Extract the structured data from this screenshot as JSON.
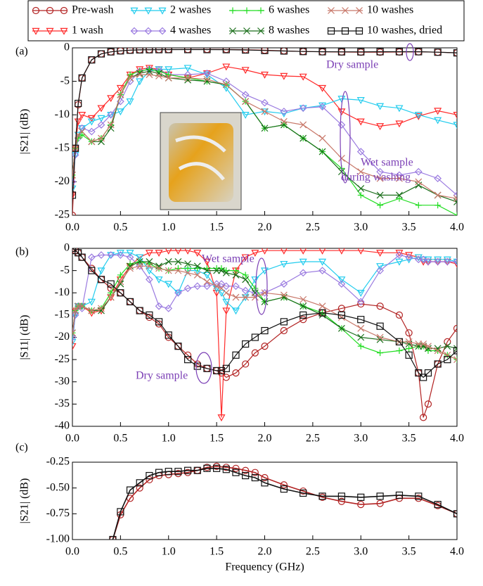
{
  "chart_data": [
    {
      "type": "line",
      "panel_label": "(a)",
      "y_label": "|S21| (dB)",
      "annotations": [
        "Dry sample",
        "Wet sample",
        "during washing"
      ],
      "x": [
        0,
        0.03,
        0.06,
        0.1,
        0.2,
        0.3,
        0.4,
        0.5,
        0.6,
        0.7,
        0.8,
        0.9,
        1.0,
        1.2,
        1.4,
        1.6,
        1.8,
        2.0,
        2.2,
        2.4,
        2.6,
        2.8,
        3.0,
        3.2,
        3.4,
        3.6,
        3.8,
        4.0
      ],
      "xlim": [
        0,
        4
      ],
      "ylim": [
        -25,
        0
      ],
      "xticks": [
        {
          "value": 0,
          "label": "0.0"
        },
        0.5,
        {
          "value": 1,
          "label": "1.0"
        },
        1.5,
        {
          "value": 2,
          "label": "2.0"
        },
        2.5,
        {
          "value": 3,
          "label": "3.0"
        },
        3.5,
        {
          "value": 4,
          "label": "4.0"
        }
      ],
      "yticks": [
        0,
        -5,
        -10,
        -15,
        -20,
        -25
      ],
      "series": [
        {
          "name": "Pre-wash",
          "color": "#b22222",
          "marker": "circle",
          "values": [
            -25,
            -15,
            -8.5,
            -4.5,
            -1.8,
            -0.9,
            -0.6,
            -0.45,
            -0.35,
            -0.3,
            -0.28,
            -0.26,
            -0.26,
            -0.25,
            -0.24,
            -0.24,
            -0.28,
            -0.35,
            -0.45,
            -0.55,
            -0.6,
            -0.62,
            -0.65,
            -0.65,
            -0.62,
            -0.6,
            -0.65,
            -0.75
          ]
        },
        {
          "name": "1 wash",
          "color": "#ff2a2a",
          "marker": "tri",
          "values": [
            -22,
            -15,
            -11,
            -10,
            -10.5,
            -9,
            -7.5,
            -6,
            -4,
            -3.2,
            -3,
            -3.2,
            -4,
            -4.5,
            -3.8,
            -2.8,
            -3.3,
            -4,
            -4.2,
            -4.3,
            -6,
            -9.5,
            -11,
            -11.7,
            -11.3,
            -10.2,
            -9.4,
            -10
          ]
        },
        {
          "name": "2 washes",
          "color": "#22ccee",
          "marker": "tri",
          "values": [
            -21,
            -16,
            -13,
            -12,
            -11,
            -10.5,
            -10,
            -9.5,
            -8,
            -5,
            -3.5,
            -3.2,
            -3.2,
            -3,
            -4,
            -6,
            -10,
            -9.5,
            -9.8,
            -9,
            -8.6,
            -7.6,
            -7.8,
            -8.7,
            -9,
            -10,
            -10.8,
            -11.5
          ]
        },
        {
          "name": "4 washes",
          "color": "#9a7ae0",
          "marker": "diamond",
          "values": [
            -20,
            -16,
            -13.5,
            -12,
            -12.5,
            -11.5,
            -10,
            -8,
            -5,
            -3.5,
            -3.2,
            -3.3,
            -4,
            -4,
            -3.8,
            -5,
            -7,
            -8.2,
            -9.5,
            -9,
            -8.8,
            -11.5,
            -15.5,
            -18.5,
            -19,
            -18.5,
            -19.5,
            -22
          ]
        },
        {
          "name": "6 washes",
          "color": "#22dd22",
          "marker": "plus",
          "values": [
            -19,
            -15,
            -13.5,
            -13,
            -14,
            -13.5,
            -11.5,
            -7,
            -4,
            -3.5,
            -3.2,
            -3.5,
            -4,
            -4.5,
            -5,
            -5.5,
            -8,
            -12,
            -11.5,
            -13.5,
            -15.5,
            -18,
            -22,
            -23.5,
            -22.5,
            -23.5,
            -23.5,
            -25
          ]
        },
        {
          "name": "8 washes",
          "color": "#1a6e1a",
          "marker": "x",
          "values": [
            -19,
            -15,
            -13,
            -12.5,
            -14,
            -14,
            -12,
            -7,
            -4.5,
            -3.8,
            -3.5,
            -3.8,
            -4.5,
            -4.8,
            -5,
            -5.5,
            -8,
            -12,
            -11.5,
            -13.5,
            -15.5,
            -18.5,
            -21,
            -22,
            -22,
            -20.5,
            -22,
            -23
          ]
        },
        {
          "name": "10 washes",
          "color": "#c8786a",
          "marker": "x",
          "values": [
            -19,
            -15,
            -13,
            -12.5,
            -14,
            -13.5,
            -11.5,
            -7,
            -4.5,
            -4,
            -4,
            -4.2,
            -4.5,
            -4.5,
            -4.7,
            -5.5,
            -8,
            -9.5,
            -11,
            -11.5,
            -13.5,
            -16.5,
            -18.5,
            -19.5,
            -19.5,
            -20,
            -22,
            -22.5
          ]
        },
        {
          "name": "10 washes, dried",
          "color": "#111111",
          "marker": "square",
          "values": [
            -22,
            -15,
            -8.3,
            -4.5,
            -1.8,
            -0.9,
            -0.6,
            -0.45,
            -0.35,
            -0.3,
            -0.28,
            -0.27,
            -0.26,
            -0.26,
            -0.26,
            -0.27,
            -0.32,
            -0.4,
            -0.47,
            -0.55,
            -0.58,
            -0.6,
            -0.6,
            -0.58,
            -0.58,
            -0.58,
            -0.65,
            -0.75
          ]
        }
      ]
    },
    {
      "type": "line",
      "panel_label": "(b)",
      "y_label": "|S11| (dB)",
      "annotations": [
        "Wet sample",
        "Dry sample"
      ],
      "x": [
        0,
        0.03,
        0.06,
        0.1,
        0.2,
        0.3,
        0.4,
        0.5,
        0.6,
        0.7,
        0.8,
        0.9,
        1.0,
        1.1,
        1.2,
        1.3,
        1.4,
        1.5,
        1.55,
        1.6,
        1.7,
        1.8,
        1.9,
        2.0,
        2.2,
        2.4,
        2.6,
        2.8,
        3.0,
        3.2,
        3.4,
        3.5,
        3.6,
        3.65,
        3.7,
        3.8,
        3.9,
        4.0
      ],
      "xlim": [
        0,
        4
      ],
      "ylim": [
        -40,
        0
      ],
      "xticks": [
        {
          "value": 0,
          "label": "0.0"
        },
        0.5,
        {
          "value": 1,
          "label": "1.0"
        },
        1.5,
        {
          "value": 2,
          "label": "2.0"
        },
        2.5,
        {
          "value": 3,
          "label": "3.0"
        },
        3.5,
        {
          "value": 4,
          "label": "4.0"
        }
      ],
      "yticks": [
        0,
        -5,
        -10,
        -15,
        -20,
        -25,
        -30,
        -35,
        -40
      ],
      "series": [
        {
          "color": "#b22222",
          "marker": "circle",
          "values": [
            0,
            -0.5,
            -1,
            -2,
            -4.5,
            -7,
            -9,
            -10,
            -12,
            -14,
            -15.5,
            -17,
            -20,
            -22,
            -24,
            -26,
            -27,
            -27.5,
            -28,
            -29,
            -28,
            -26,
            -23.5,
            -22,
            -18.5,
            -16,
            -14.5,
            -13.5,
            -12.5,
            -13,
            -15,
            -19,
            -28,
            -38,
            -35,
            -26,
            -21,
            -18
          ]
        },
        {
          "color": "#ff2a2a",
          "marker": "tri",
          "values": [
            -22,
            -14,
            -13,
            -13,
            -14.5,
            -14,
            -11,
            -7,
            -4,
            -2,
            -1,
            -1,
            -0.5,
            -0.5,
            -0.5,
            -1,
            -3,
            -10,
            -38,
            -14,
            -5,
            -2,
            -1,
            -0.5,
            -0.5,
            -0.5,
            -0.5,
            -0.5,
            -0.5,
            -1,
            -1,
            -1.5,
            -2,
            -3,
            -3,
            -3,
            -3,
            -3.5
          ]
        },
        {
          "color": "#22ccee",
          "marker": "tri",
          "values": [
            -21,
            -15,
            -13,
            -13,
            -12,
            -5,
            -1.5,
            -1,
            -1,
            -2,
            -5,
            -7,
            -8,
            -10,
            -5,
            -5,
            -6,
            -9,
            -10,
            -12,
            -14,
            -11,
            -7,
            -5,
            -3.5,
            -3,
            -3,
            -7,
            -10,
            -4,
            -3,
            -2.5,
            -2,
            -2.5,
            -2.5,
            -2.5,
            -2.5,
            -3
          ]
        },
        {
          "color": "#9a7ae0",
          "marker": "diamond",
          "values": [
            -20,
            -15,
            -13,
            -13.5,
            -2,
            -1.5,
            -1.5,
            -1.5,
            -2,
            -4,
            -7,
            -13,
            -13.5,
            -10,
            -9,
            -8.5,
            -8.5,
            -8,
            -8,
            -8.5,
            -8.5,
            -9.5,
            -10,
            -10,
            -8,
            -5.5,
            -5,
            -8,
            -12,
            -5,
            -1.5,
            -2,
            -2.5,
            -2.5,
            -3,
            -3,
            -3,
            -3
          ]
        },
        {
          "color": "#22dd22",
          "marker": "plus",
          "values": [
            -19,
            -14,
            -13,
            -13,
            -14,
            -13.5,
            -10,
            -6,
            -3.5,
            -3,
            -3.5,
            -4.5,
            -5,
            -4.5,
            -4.5,
            -4.5,
            -4.5,
            -4.5,
            -4.5,
            -5,
            -5,
            -6,
            -9,
            -12,
            -11,
            -13,
            -14.5,
            -18,
            -22,
            -23.5,
            -23,
            -22.5,
            -22,
            -22,
            -23,
            -23,
            -24,
            -25
          ]
        },
        {
          "color": "#1a6e1a",
          "marker": "x",
          "values": [
            -19,
            -14,
            -13,
            -13,
            -14,
            -14,
            -11,
            -8,
            -4,
            -3,
            -3,
            -4,
            -3,
            -3,
            -3.5,
            -4,
            -5,
            -5,
            -5,
            -5.5,
            -6,
            -7,
            -10,
            -12,
            -11,
            -13,
            -15,
            -18,
            -20,
            -20.5,
            -21,
            -21.5,
            -22,
            -22,
            -22.5,
            -22.5,
            -22,
            -22.5
          ]
        },
        {
          "color": "#c8786a",
          "marker": "x",
          "values": [
            -19,
            -14,
            -13,
            -13,
            -14,
            -13.5,
            -11,
            -7.5,
            -4.5,
            -4,
            -4,
            -4.5,
            -5,
            -5,
            -5.5,
            -6,
            -7.5,
            -8.5,
            -9,
            -10,
            -11,
            -11,
            -11,
            -10,
            -10.5,
            -11.5,
            -13,
            -15.5,
            -18,
            -20,
            -21,
            -21,
            -21.5,
            -21.5,
            -22,
            -23,
            -24,
            -25
          ]
        },
        {
          "color": "#111111",
          "marker": "square",
          "values": [
            0,
            -0.5,
            -1,
            -2,
            -5,
            -7,
            -8,
            -10,
            -12,
            -14,
            -15,
            -16.5,
            -19.5,
            -22,
            -25,
            -26.5,
            -27,
            -27.5,
            -27.5,
            -27,
            -24,
            -21.5,
            -20,
            -18.5,
            -16.5,
            -15,
            -14.5,
            -15,
            -16,
            -17.5,
            -21,
            -24,
            -28,
            -29,
            -28,
            -26,
            -25,
            -23
          ]
        }
      ]
    },
    {
      "type": "line",
      "panel_label": "(c)",
      "y_label": "|S21| (dB)",
      "x_label": "Frequency (GHz)",
      "x": [
        0.42,
        0.5,
        0.6,
        0.7,
        0.8,
        0.9,
        1.0,
        1.1,
        1.2,
        1.3,
        1.4,
        1.5,
        1.6,
        1.7,
        1.8,
        1.9,
        2.0,
        2.2,
        2.4,
        2.6,
        2.8,
        3.0,
        3.2,
        3.4,
        3.6,
        3.8,
        4.0
      ],
      "xlim": [
        0,
        4
      ],
      "ylim": [
        -1,
        -0.25
      ],
      "xticks": [
        {
          "value": 0,
          "label": "0.0"
        },
        0.5,
        {
          "value": 1,
          "label": "1.0"
        },
        1.5,
        {
          "value": 2,
          "label": "2.0"
        },
        2.5,
        {
          "value": 3,
          "label": "3.0"
        },
        3.5,
        {
          "value": 4,
          "label": "4.0"
        }
      ],
      "yticks": [
        -0.25,
        {
          "value": -0.5,
          "label": "-0.50"
        },
        -0.75,
        {
          "value": -1,
          "label": "-1.00"
        }
      ],
      "series": [
        {
          "color": "#b22222",
          "marker": "circle",
          "values": [
            -1.0,
            -0.76,
            -0.6,
            -0.5,
            -0.42,
            -0.38,
            -0.37,
            -0.36,
            -0.35,
            -0.33,
            -0.3,
            -0.29,
            -0.3,
            -0.31,
            -0.33,
            -0.35,
            -0.4,
            -0.47,
            -0.53,
            -0.59,
            -0.63,
            -0.66,
            -0.65,
            -0.6,
            -0.6,
            -0.67,
            -0.75
          ]
        },
        {
          "color": "#111111",
          "marker": "square",
          "values": [
            -1.0,
            -0.73,
            -0.52,
            -0.45,
            -0.38,
            -0.35,
            -0.34,
            -0.34,
            -0.33,
            -0.33,
            -0.31,
            -0.31,
            -0.32,
            -0.35,
            -0.38,
            -0.4,
            -0.45,
            -0.51,
            -0.55,
            -0.58,
            -0.58,
            -0.59,
            -0.58,
            -0.57,
            -0.58,
            -0.66,
            -0.75
          ]
        }
      ]
    }
  ]
}
